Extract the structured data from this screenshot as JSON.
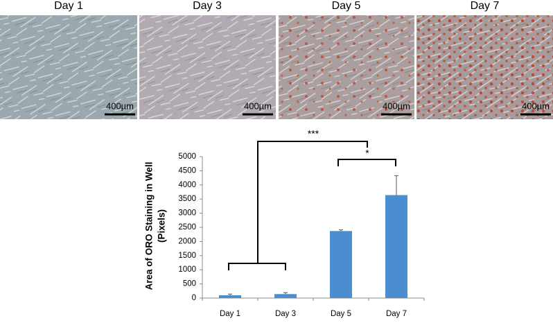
{
  "panels": [
    {
      "label": "Day 1",
      "scale_bar": "400µm"
    },
    {
      "label": "Day 3",
      "scale_bar": "400µm"
    },
    {
      "label": "Day 5",
      "scale_bar": "400µm"
    },
    {
      "label": "Day 7",
      "scale_bar": "400µm"
    }
  ],
  "chart_data": {
    "type": "bar",
    "y_label": [
      "Area of ORO Staining in Well",
      "(Pixels)"
    ],
    "categories": [
      "Day 1",
      "Day 3",
      "Day 5",
      "Day 7"
    ],
    "values": [
      100,
      140,
      2370,
      3640
    ],
    "errors": [
      40,
      50,
      40,
      690
    ],
    "color": "#4a8ed0",
    "ylim": [
      0,
      5000
    ],
    "yticks": [
      0,
      500,
      1000,
      1500,
      2000,
      2500,
      3000,
      3500,
      4000,
      4500,
      5000
    ],
    "annotations": [
      "***",
      "*"
    ]
  }
}
